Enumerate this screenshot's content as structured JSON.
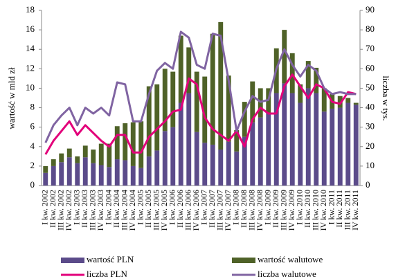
{
  "chart_data": {
    "type": "bar",
    "stacked": true,
    "categories": [
      "I kw. 2002",
      "II kw. 2002",
      "III kw. 2002",
      "IV kw. 2002",
      "I kw. 2003",
      "II kw. 2003",
      "III kw. 2003",
      "IV kw. 2003",
      "I kw. 2004",
      "II kw. 2004",
      "III kw. 2004",
      "IV kw. 2004",
      "I kw. 2005",
      "II kw. 2005",
      "III kw. 2005",
      "IV kw. 2005",
      "I kw. 2006",
      "II kw. 2006",
      "III kw. 2006",
      "IV kw. 2006",
      "I kw. 2007",
      "II kw. 2007",
      "III kw. 2007",
      "IV kw. 2007",
      "I kw. 2008",
      "II kw. 2008",
      "III kw. 2008",
      "IV kw. 2008",
      "I kw. 2009",
      "II kw. 2009",
      "III kw. 2009",
      "IV kw. 2009",
      "I kw. 2010",
      "II kw. 2010",
      "III kw. 2010",
      "IV kw. 2010",
      "I kw. 2011",
      "II kw. 2011",
      "III kw. 2011",
      "IV kw. 2011"
    ],
    "ylabel": "wartość w mld zł",
    "y2label": "liczba w tys.",
    "ylim": [
      0,
      18
    ],
    "yticks": [
      0,
      2,
      4,
      6,
      8,
      10,
      12,
      14,
      16,
      18
    ],
    "y2lim": [
      0,
      90
    ],
    "y2ticks": [
      0,
      10,
      20,
      30,
      40,
      50,
      60,
      70,
      80,
      90
    ],
    "series": [
      {
        "name": "wartość PLN",
        "type": "bar",
        "color": "#5b4b8a",
        "values": [
          1.3,
          2.0,
          2.4,
          2.9,
          2.3,
          2.9,
          2.3,
          2.1,
          1.9,
          2.7,
          2.6,
          2.0,
          1.8,
          3.0,
          3.6,
          5.6,
          6.0,
          8.5,
          9.5,
          5.5,
          4.4,
          4.2,
          3.7,
          4.5,
          3.5,
          5.0,
          6.5,
          7.0,
          7.5,
          9.5,
          10.5,
          9.5,
          8.5,
          10.0,
          9.5,
          7.6,
          7.9,
          8.0,
          8.5,
          8.3
        ]
      },
      {
        "name": "wartość walutowe",
        "type": "bar",
        "color": "#4f6228",
        "values": [
          0.7,
          0.7,
          0.9,
          0.9,
          0.7,
          1.2,
          1.4,
          2.2,
          2.4,
          3.4,
          3.8,
          4.5,
          4.8,
          7.2,
          6.8,
          6.4,
          5.7,
          6.9,
          4.7,
          6.2,
          6.8,
          11.4,
          13.1,
          6.8,
          2.2,
          3.6,
          4.2,
          3.0,
          2.5,
          4.6,
          5.5,
          4.1,
          1.9,
          2.8,
          2.6,
          2.4,
          1.5,
          1.2,
          0.5,
          0.2
        ]
      },
      {
        "name": "liczba PLN",
        "type": "line",
        "axis": "y2",
        "color": "#e2007a",
        "values": [
          16,
          23,
          28,
          33,
          26,
          31,
          27,
          23,
          20,
          26,
          26,
          17,
          17,
          25,
          29,
          33,
          38,
          39,
          55,
          52,
          35,
          29,
          26,
          23,
          28,
          20,
          34,
          40,
          37,
          37,
          51,
          57,
          51,
          45,
          52,
          50,
          43,
          42,
          48,
          47
        ]
      },
      {
        "name": "liczba walutowe",
        "type": "line",
        "axis": "y2",
        "color": "#8064a2",
        "values": [
          22,
          31,
          36,
          40,
          31,
          40,
          37,
          40,
          36,
          53,
          52,
          33,
          33,
          47,
          59,
          63,
          60,
          79,
          76,
          62,
          60,
          78,
          77,
          54,
          28,
          38,
          46,
          43,
          44,
          60,
          70,
          62,
          56,
          62,
          59,
          50,
          47,
          48,
          47,
          47
        ]
      }
    ]
  }
}
